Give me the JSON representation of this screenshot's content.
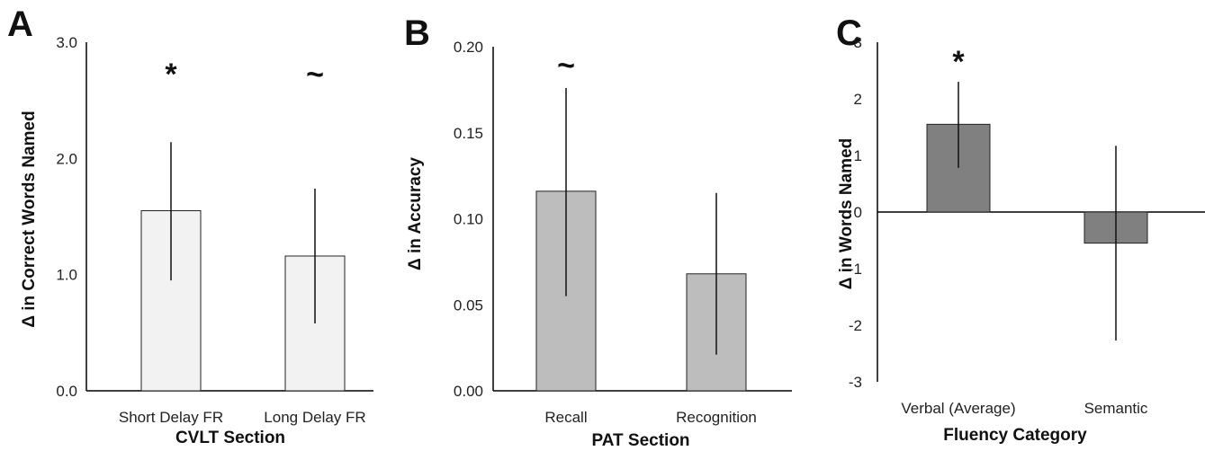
{
  "chart_data": [
    {
      "type": "bar",
      "panel": "A",
      "categories": [
        "Short Delay FR",
        "Long Delay FR"
      ],
      "values": [
        1.55,
        1.16
      ],
      "error_low": [
        0.95,
        0.58
      ],
      "error_high": [
        2.14,
        1.74
      ],
      "significance": [
        "*",
        "~"
      ],
      "xlabel": "CVLT Section",
      "ylabel": "Δ in Correct Words Named",
      "ylim": [
        0,
        3
      ],
      "yticks": [
        "0.0",
        "1.0",
        "2.0",
        "3.0"
      ],
      "bar_color": "#f2f2f2",
      "grid": false
    },
    {
      "type": "bar",
      "panel": "B",
      "categories": [
        "Recall",
        "Recognition"
      ],
      "values": [
        0.116,
        0.068
      ],
      "error_low": [
        0.055,
        0.021
      ],
      "error_high": [
        0.176,
        0.115
      ],
      "significance": [
        "~",
        ""
      ],
      "xlabel": "PAT Section",
      "ylabel": "Δ in Accuracy",
      "ylim": [
        0,
        0.2
      ],
      "yticks": [
        "0.00",
        "0.05",
        "0.10",
        "0.15",
        "0.20"
      ],
      "bar_color": "#bdbdbd",
      "grid": false
    },
    {
      "type": "bar",
      "panel": "C",
      "categories": [
        "Verbal (Average)",
        "Semantic"
      ],
      "values": [
        1.55,
        -0.55
      ],
      "error_low": [
        0.78,
        -2.27
      ],
      "error_high": [
        2.3,
        1.17
      ],
      "significance": [
        "*",
        ""
      ],
      "xlabel": "Fluency Category",
      "ylabel": "Δ in Words Named",
      "ylim": [
        -3,
        3
      ],
      "yticks": [
        "-3",
        "-2",
        "-1",
        "0",
        "1",
        "2",
        "3"
      ],
      "bar_color": "#808080",
      "grid": false
    }
  ]
}
